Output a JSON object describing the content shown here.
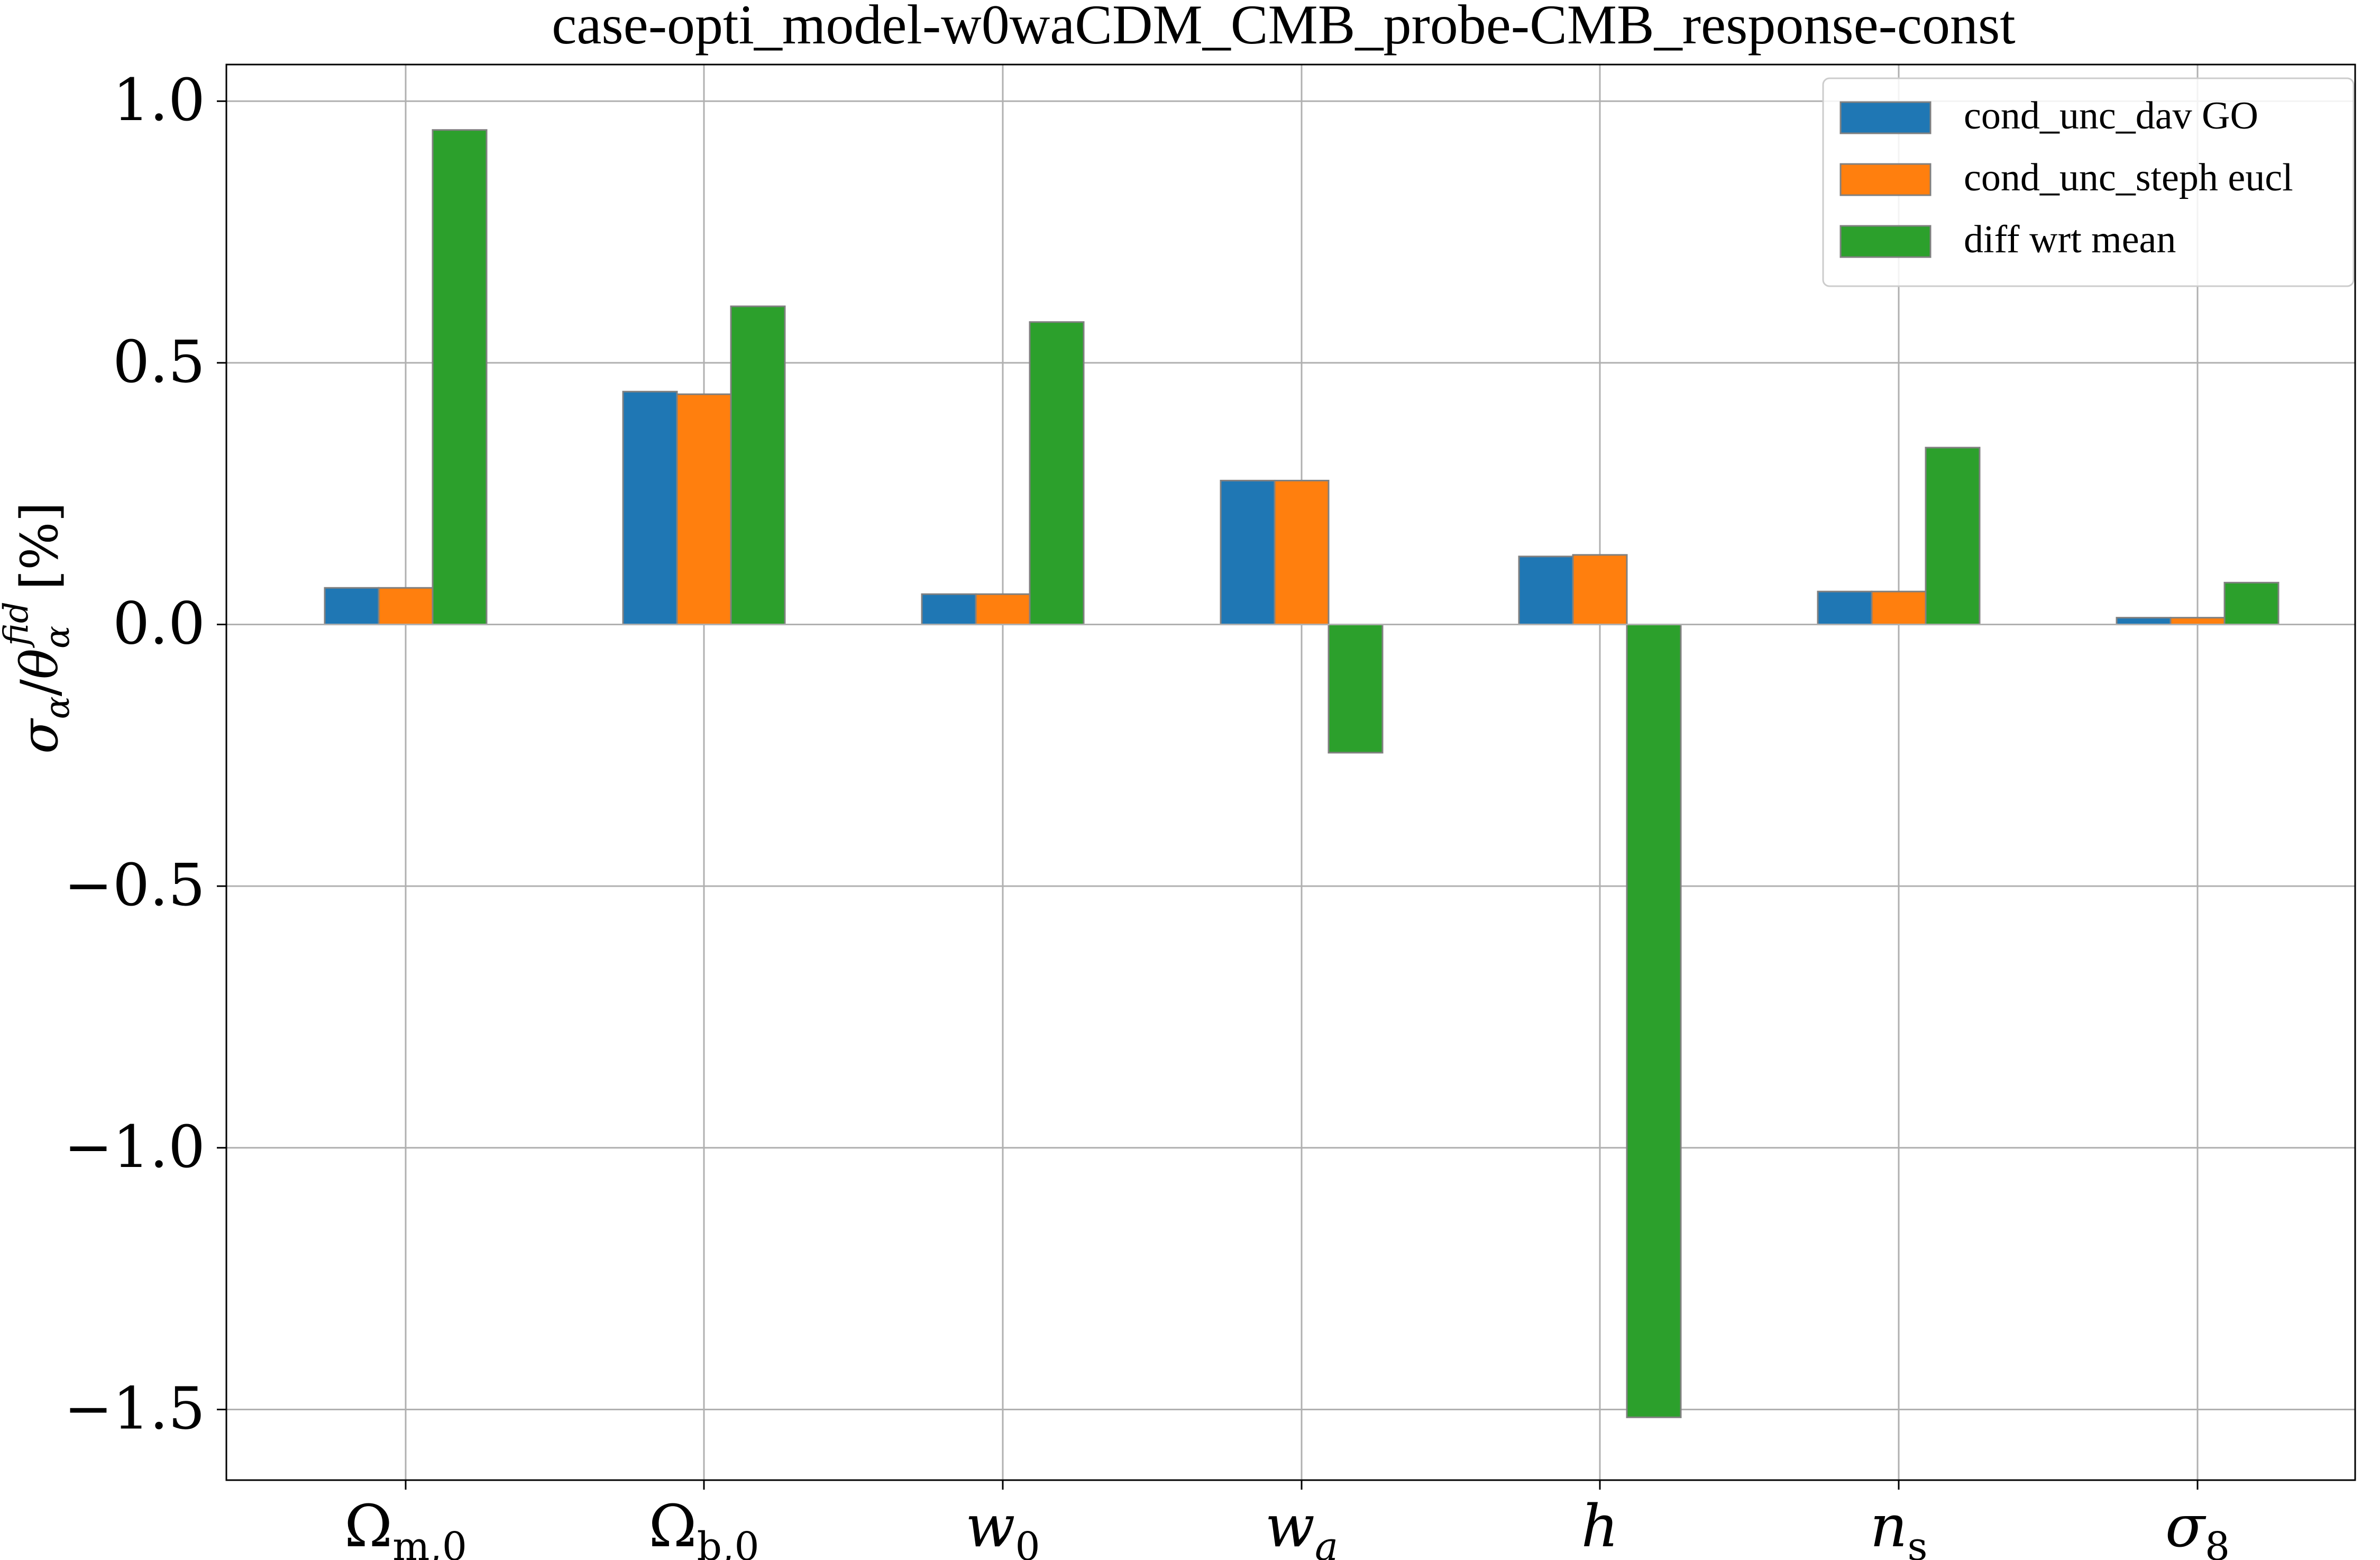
{
  "chart_data": {
    "type": "bar",
    "title": "case-opti_model-w0waCDM_CMB_probe-CMB_response-const",
    "ylabel": "σ_α/θ_α^fid [%]",
    "xlabel": "",
    "categories": [
      "Ω_m,0",
      "Ω_b,0",
      "w_0",
      "w_a",
      "h",
      "n_s",
      "σ_8"
    ],
    "series": [
      {
        "name": "cond_unc_dav GO",
        "color": "#1f77b4",
        "values": [
          0.07,
          0.445,
          0.058,
          0.275,
          0.13,
          0.063,
          0.013
        ]
      },
      {
        "name": "cond_unc_steph eucl",
        "color": "#ff7f0e",
        "values": [
          0.07,
          0.44,
          0.058,
          0.275,
          0.133,
          0.063,
          0.013
        ]
      },
      {
        "name": "diff wrt mean",
        "color": "#2ca02c",
        "values": [
          0.945,
          0.608,
          0.578,
          -0.245,
          -1.515,
          0.338,
          0.08
        ]
      }
    ],
    "ylim": [
      -1.635,
      1.07
    ],
    "yticks": [
      "1.0",
      "0.5",
      "0.0",
      "−0.5",
      "−1.0",
      "−1.5"
    ],
    "ytick_values": [
      1.0,
      0.5,
      0.0,
      -0.5,
      -1.0,
      -1.5
    ],
    "grid": true,
    "legend_position": "top-right"
  }
}
